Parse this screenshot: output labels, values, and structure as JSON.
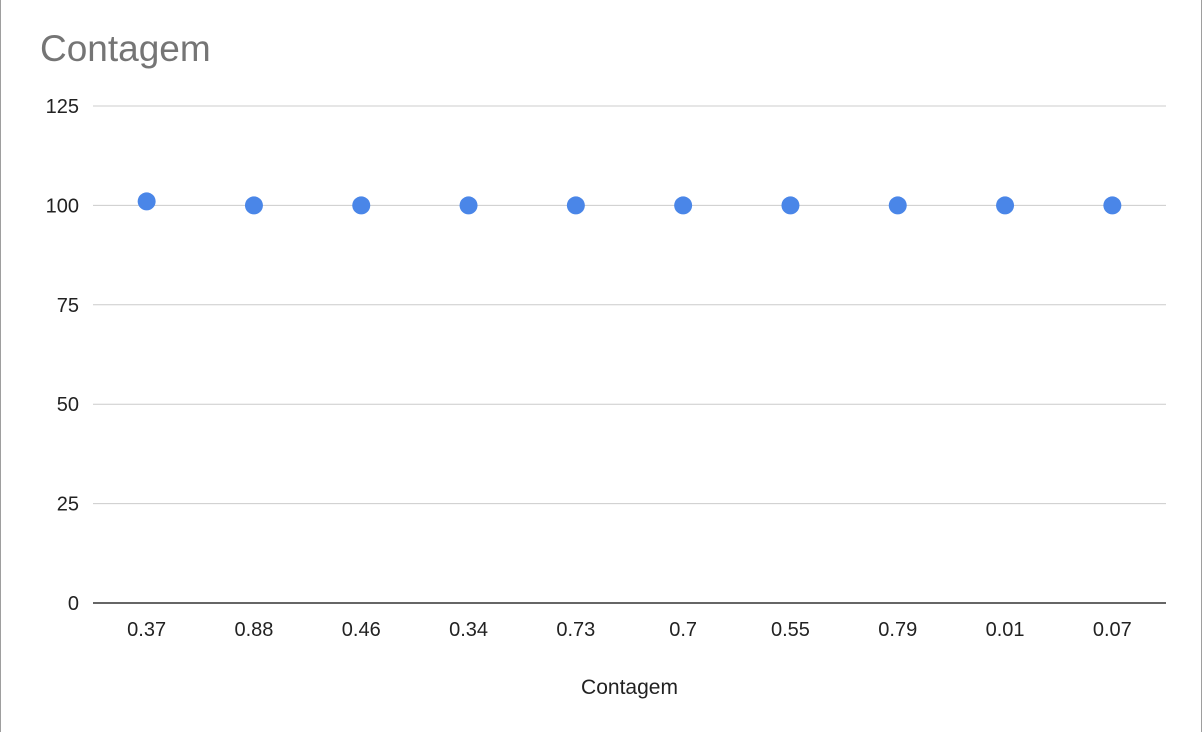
{
  "chart_data": {
    "type": "scatter",
    "title": "Contagem",
    "xlabel": "Contagem",
    "ylabel": "",
    "categories": [
      "0.37",
      "0.88",
      "0.46",
      "0.34",
      "0.73",
      "0.7",
      "0.55",
      "0.79",
      "0.01",
      "0.07"
    ],
    "series": [
      {
        "values": [
          101,
          100,
          100,
          100,
          100,
          100,
          100,
          100,
          100,
          100
        ],
        "color": "#4a86e8"
      }
    ],
    "ylim": [
      0,
      125
    ],
    "yticks": [
      0,
      25,
      50,
      75,
      100,
      125
    ],
    "grid": true,
    "legend": "none"
  }
}
